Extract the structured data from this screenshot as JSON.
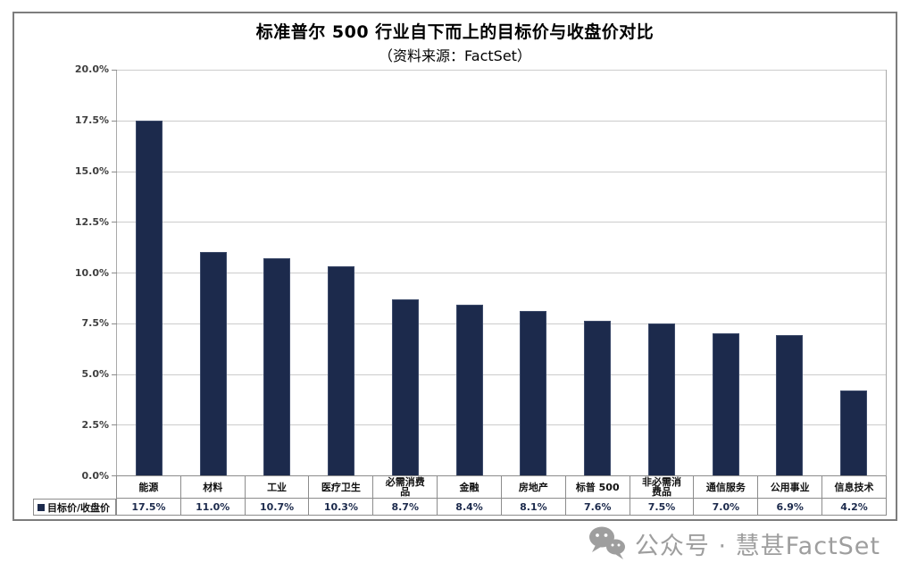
{
  "header": {
    "title": "标准普尔 500 行业自下而上的目标价与收盘价对比",
    "subtitle": "（资料来源：FactSet）"
  },
  "legend": {
    "label": "目标价/收盘价",
    "swatch_color": "#1c2a4c"
  },
  "watermark": {
    "icon": "wechat-icon",
    "text": "公众号 · 慧甚FactSet",
    "color": "#9e9e9e"
  },
  "colors": {
    "bar": "#1c2a4c",
    "gridline": "#cccccc",
    "axis": "#8c8c8c",
    "frame_border": "#7d7d7d",
    "value_text": "#1c2a4c",
    "ytick_text": "#404040"
  },
  "chart_data": {
    "type": "bar",
    "title": "标准普尔 500 行业自下而上的目标价与收盘价对比",
    "subtitle": "（资料来源：FactSet）",
    "series_name": "目标价/收盘价",
    "categories": [
      "能源",
      "材料",
      "工业",
      "医疗卫生",
      "必需消费品",
      "金融",
      "房地产",
      "标普 500",
      "非必需消费品",
      "通信服务",
      "公用事业",
      "信息技术"
    ],
    "values": [
      17.5,
      11.0,
      10.7,
      10.3,
      8.7,
      8.4,
      8.1,
      7.6,
      7.5,
      7.0,
      6.9,
      4.2
    ],
    "value_labels": [
      "17.5%",
      "11.0%",
      "10.7%",
      "10.3%",
      "8.7%",
      "8.4%",
      "8.1%",
      "7.6%",
      "7.5%",
      "7.0%",
      "6.9%",
      "4.2%"
    ],
    "xlabel": "",
    "ylabel": "",
    "ylim": [
      0,
      20
    ],
    "yticks": [
      0,
      2.5,
      5,
      7.5,
      10,
      12.5,
      15,
      17.5,
      20
    ],
    "ytick_labels": [
      "0.0%",
      "2.5%",
      "5.0%",
      "7.5%",
      "10.0%",
      "12.5%",
      "15.0%",
      "17.5%",
      "20.0%"
    ],
    "grid": true,
    "legend_position": "bottom-left",
    "data_table_shown": true,
    "bar_color": "#1c2a4c"
  }
}
